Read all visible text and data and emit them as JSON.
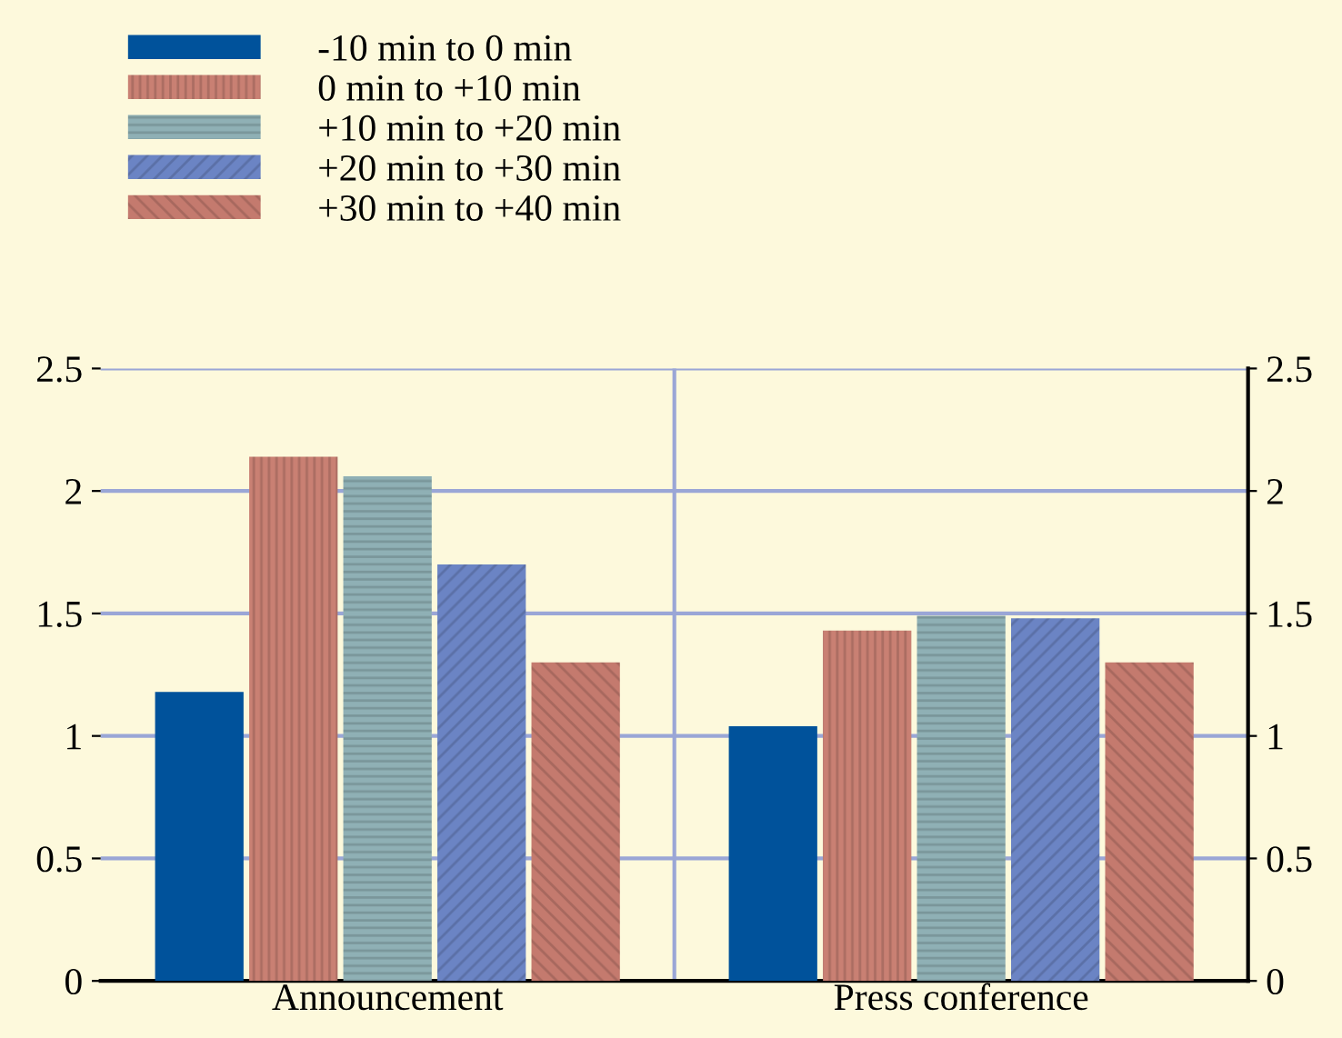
{
  "chart_data": {
    "type": "bar",
    "categories": [
      "Announcement",
      "Press conference"
    ],
    "series": [
      {
        "name": "-10 min to 0 min",
        "color": "#00529b",
        "values": [
          1.18,
          1.04
        ]
      },
      {
        "name": "0 min to +10 min",
        "color": "#c98073",
        "values": [
          2.14,
          1.43
        ]
      },
      {
        "name": "+10 min to +20 min",
        "color": "#8fb0b5",
        "values": [
          2.06,
          1.49
        ]
      },
      {
        "name": "+20 min to +30 min",
        "color": "#6b84c4",
        "values": [
          1.7,
          1.48
        ]
      },
      {
        "name": "+30 min to +40 min",
        "color": "#c47a6e",
        "values": [
          1.3,
          1.3
        ]
      }
    ],
    "ylim": [
      0,
      2.5
    ],
    "yticks": [
      0,
      0.5,
      1,
      1.5,
      2,
      2.5
    ],
    "y2lim": [
      0,
      2.5
    ],
    "y2ticks": [
      0,
      0.5,
      1,
      1.5,
      2,
      2.5
    ],
    "grid": true,
    "legend": "top left"
  }
}
